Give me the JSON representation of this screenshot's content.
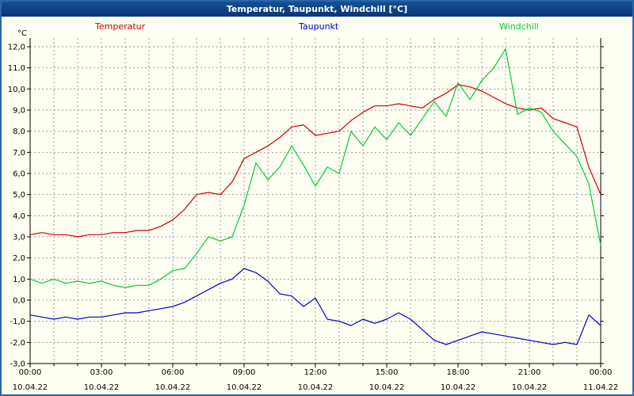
{
  "window": {
    "title": "Temperatur, Taupunkt, Windchill [°C]"
  },
  "colors": {
    "titlebar": "#0d4191",
    "background": "#fffff2",
    "frame_border": "#2a65a8",
    "grid": "#999999",
    "temperatur": "#cc0000",
    "taupunkt": "#0000cc",
    "windchill": "#00cc33"
  },
  "legend": [
    {
      "label": "Temperatur",
      "color": "#cc0000"
    },
    {
      "label": "Taupunkt",
      "color": "#0000cc"
    },
    {
      "label": "Windchill",
      "color": "#00cc33"
    }
  ],
  "chart_data": {
    "type": "line",
    "title": "Temperatur, Taupunkt, Windchill [°C]",
    "xlabel": "",
    "ylabel": "°C",
    "ylim": [
      -3,
      12
    ],
    "ytick_step": 1.0,
    "ytick_format": "decimal-comma, one decimal (e.g. 12,0)",
    "xlim": [
      0,
      24
    ],
    "x_unit": "hours since 10.04.22 00:00",
    "grid": "dashed gray, vertical every hour, horizontal every 1 °C",
    "legend_position": "top, outside plot",
    "x_ticks": [
      {
        "hour": 0,
        "time": "00:00",
        "date": "10.04.22"
      },
      {
        "hour": 3,
        "time": "03:00",
        "date": "10.04.22"
      },
      {
        "hour": 6,
        "time": "06:00",
        "date": "10.04.22"
      },
      {
        "hour": 9,
        "time": "09:00",
        "date": "10.04.22"
      },
      {
        "hour": 12,
        "time": "12:00",
        "date": "10.04.22"
      },
      {
        "hour": 15,
        "time": "15:00",
        "date": "10.04.22"
      },
      {
        "hour": 18,
        "time": "18:00",
        "date": "10.04.22"
      },
      {
        "hour": 21,
        "time": "21:00",
        "date": "10.04.22"
      },
      {
        "hour": 24,
        "time": "00:00",
        "date": "11.04.22"
      }
    ],
    "x": [
      0,
      0.5,
      1,
      1.5,
      2,
      2.5,
      3,
      3.5,
      4,
      4.5,
      5,
      5.5,
      6,
      6.5,
      7,
      7.5,
      8,
      8.5,
      9,
      9.5,
      10,
      10.5,
      11,
      11.5,
      12,
      12.5,
      13,
      13.5,
      14,
      14.5,
      15,
      15.5,
      16,
      16.5,
      17,
      17.5,
      18,
      18.5,
      19,
      19.5,
      20,
      20.5,
      21,
      21.5,
      22,
      22.5,
      23,
      23.5,
      24
    ],
    "series": [
      {
        "name": "Temperatur",
        "color": "#cc0000",
        "values": [
          3.1,
          3.2,
          3.1,
          3.1,
          3.0,
          3.1,
          3.1,
          3.2,
          3.2,
          3.3,
          3.3,
          3.5,
          3.8,
          4.3,
          5.0,
          5.1,
          5.0,
          5.6,
          6.7,
          7.0,
          7.3,
          7.7,
          8.2,
          8.3,
          7.8,
          7.9,
          8.0,
          8.5,
          8.9,
          9.2,
          9.2,
          9.3,
          9.2,
          9.1,
          9.5,
          9.8,
          10.2,
          10.1,
          9.9,
          9.6,
          9.3,
          9.1,
          9.0,
          9.1,
          8.6,
          8.4,
          8.2,
          6.3,
          5.0
        ]
      },
      {
        "name": "Taupunkt",
        "color": "#0000cc",
        "values": [
          -0.7,
          -0.8,
          -0.9,
          -0.8,
          -0.9,
          -0.8,
          -0.8,
          -0.7,
          -0.6,
          -0.6,
          -0.5,
          -0.4,
          -0.3,
          -0.1,
          0.2,
          0.5,
          0.8,
          1.0,
          1.5,
          1.3,
          0.9,
          0.3,
          0.2,
          -0.3,
          0.1,
          -0.9,
          -1.0,
          -1.2,
          -0.9,
          -1.1,
          -0.9,
          -0.6,
          -0.9,
          -1.4,
          -1.9,
          -2.1,
          -1.9,
          -1.7,
          -1.5,
          -1.6,
          -1.7,
          -1.8,
          -1.9,
          -2.0,
          -2.1,
          -2.0,
          -2.1,
          -0.7,
          -1.2
        ]
      },
      {
        "name": "Windchill",
        "color": "#00cc33",
        "values": [
          1.0,
          0.8,
          1.0,
          0.8,
          0.9,
          0.8,
          0.9,
          0.7,
          0.6,
          0.7,
          0.7,
          1.0,
          1.4,
          1.5,
          2.2,
          3.0,
          2.8,
          3.0,
          4.5,
          6.5,
          5.7,
          6.3,
          7.3,
          6.4,
          5.4,
          6.3,
          6.0,
          8.0,
          7.3,
          8.2,
          7.6,
          8.4,
          7.8,
          8.6,
          9.4,
          8.7,
          10.3,
          9.5,
          10.4,
          11.0,
          11.9,
          8.8,
          9.1,
          8.9,
          8.0,
          7.4,
          6.8,
          5.5,
          2.6
        ]
      }
    ]
  }
}
